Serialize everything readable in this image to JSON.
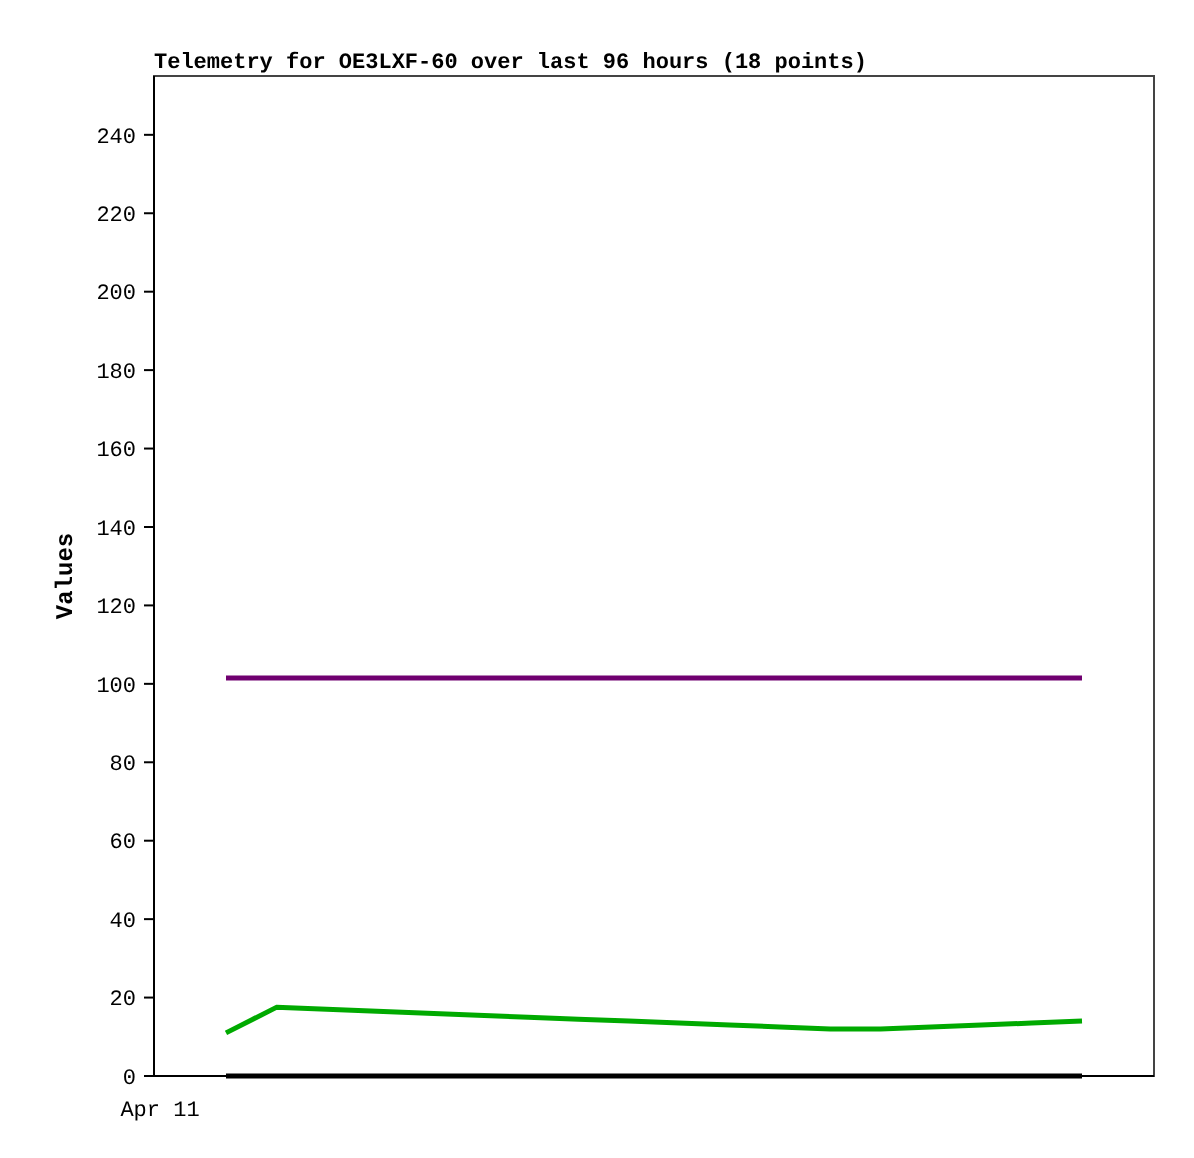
{
  "chart_data": {
    "type": "line",
    "title": "Telemetry for OE3LXF-60 over last 96 hours (18 points)",
    "ylabel": "Values",
    "categories": [
      null,
      null,
      null,
      null,
      null,
      null,
      null,
      null,
      null,
      null,
      null,
      null,
      null,
      null,
      null,
      null,
      null,
      null
    ],
    "annotations": [
      "Apr 11"
    ],
    "ylim": [
      0,
      255
    ],
    "yticks": [
      0,
      20,
      40,
      60,
      80,
      100,
      120,
      140,
      160,
      180,
      200,
      220,
      240
    ],
    "series": [
      {
        "color": "#700070",
        "values": [
          101.5,
          101.5,
          101.5,
          101.5,
          101.5,
          101.5,
          101.5,
          101.5,
          101.5,
          101.5,
          101.5,
          101.5,
          101.5,
          101.5,
          101.5,
          101.5,
          101.5,
          101.5
        ]
      },
      {
        "color": "#00aa00",
        "values": [
          11,
          17.5,
          17,
          16.5,
          16,
          15.5,
          15,
          14.5,
          14,
          13.5,
          13,
          12.5,
          12,
          12,
          12.5,
          13,
          13.5,
          14
        ]
      },
      {
        "color": "#000000",
        "values": [
          0,
          0,
          0,
          0,
          0,
          0,
          0,
          0,
          0,
          0,
          0,
          0,
          0,
          0,
          0,
          0,
          0,
          0
        ]
      }
    ],
    "marker": "none",
    "line_style": "solid"
  }
}
